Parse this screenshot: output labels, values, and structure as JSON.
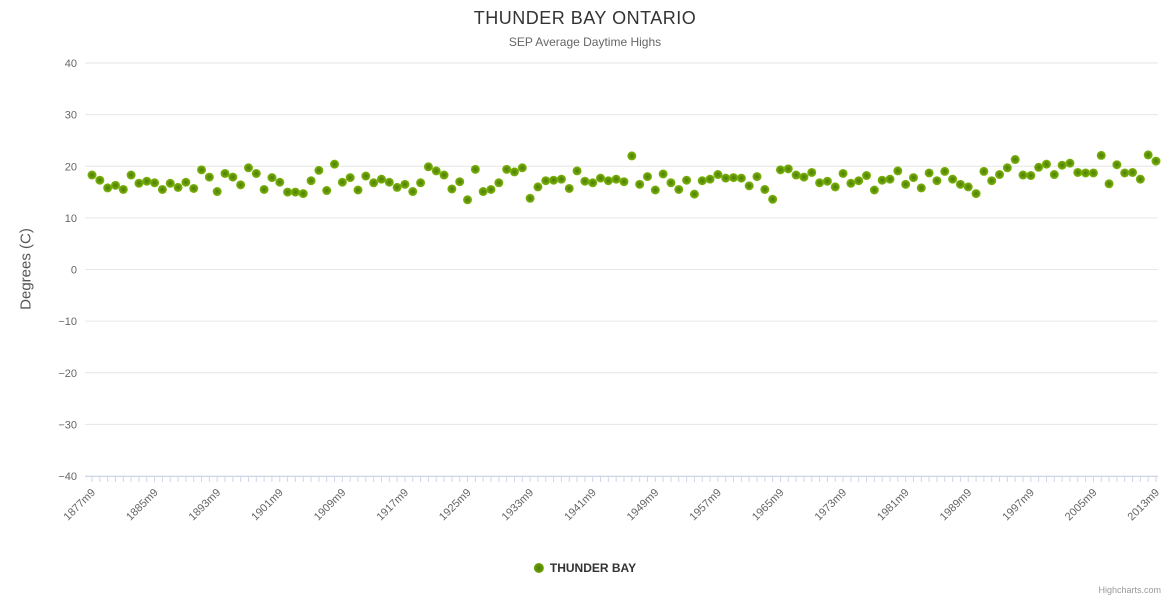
{
  "header": {
    "title": "THUNDER BAY ONTARIO",
    "subtitle": "SEP Average Daytime Highs"
  },
  "legend": {
    "label": "THUNDER BAY",
    "marker_icon": "circle-marker-icon"
  },
  "credits": {
    "label": "Highcharts.com"
  },
  "colors": {
    "point_outer": "#80b60d",
    "point_mid": "#5f9407",
    "point_core": "#4e7d05",
    "gridline": "#e6e6e6",
    "axis_line": "#ccd6eb",
    "tick": "#ccd6eb",
    "axis_label": "#666666",
    "title_text": "#333333",
    "subtitle_text": "#666666",
    "background": "#ffffff"
  },
  "chart_data": {
    "type": "scatter",
    "title": "THUNDER BAY ONTARIO",
    "subtitle": "SEP Average Daytime Highs",
    "xlabel": "",
    "ylabel": "Degrees (C)",
    "ylim": [
      -40,
      40
    ],
    "y_tick_step": 10,
    "y_tick_labels": [
      "40",
      "30",
      "20",
      "10",
      "0",
      "−10",
      "−20",
      "−30",
      "−40"
    ],
    "grid": true,
    "legend_position": "bottom-center",
    "x_start_year": 1877,
    "x_end_year": 2013,
    "x_label_every": 8,
    "x_label_suffix": "m9",
    "x_tick_labels": [
      "1877m9",
      "1885m9",
      "1893m9",
      "1901m9",
      "1909m9",
      "1917m9",
      "1925m9",
      "1933m9",
      "1941m9",
      "1949m9",
      "1957m9",
      "1965m9",
      "1973m9",
      "1981m9",
      "1989m9",
      "1997m9",
      "2005m9",
      "2013m9"
    ],
    "series": [
      {
        "name": "THUNDER BAY",
        "start_year": 1877,
        "values": [
          18.3,
          17.3,
          15.8,
          16.3,
          15.5,
          18.3,
          16.7,
          17.1,
          16.8,
          15.5,
          16.7,
          15.9,
          16.9,
          15.7,
          19.3,
          17.9,
          15.1,
          18.6,
          17.9,
          16.4,
          19.7,
          18.6,
          15.5,
          17.8,
          16.9,
          15.0,
          15.0,
          14.7,
          17.2,
          19.2,
          15.3,
          20.4,
          16.9,
          17.8,
          15.4,
          18.1,
          16.8,
          17.5,
          16.9,
          15.9,
          16.5,
          15.1,
          16.8,
          19.9,
          19.1,
          18.3,
          15.6,
          17.0,
          13.5,
          19.4,
          15.1,
          15.5,
          16.8,
          19.4,
          18.9,
          19.7,
          13.8,
          16.0,
          17.2,
          17.3,
          17.5,
          15.7,
          19.1,
          17.1,
          16.8,
          17.7,
          17.2,
          17.5,
          17.0,
          22.0,
          16.5,
          18.0,
          15.4,
          18.5,
          16.8,
          15.5,
          17.3,
          14.6,
          17.2,
          17.5,
          18.4,
          17.7,
          17.8,
          17.7,
          16.2,
          18.0,
          15.5,
          13.6,
          19.3,
          19.5,
          18.3,
          17.9,
          18.8,
          16.8,
          17.1,
          16.0,
          18.6,
          16.7,
          17.2,
          18.2,
          15.4,
          17.3,
          17.5,
          19.1,
          16.5,
          17.8,
          15.8,
          18.7,
          17.2,
          19.0,
          17.5,
          16.5,
          16.0,
          14.7,
          19.0,
          17.2,
          18.4,
          19.7,
          21.3,
          18.3,
          18.2,
          19.8,
          20.4,
          18.4,
          20.2,
          20.6,
          18.8,
          18.7,
          18.7,
          22.1,
          16.6,
          20.3,
          18.7,
          18.8,
          17.5,
          22.2,
          21.0
        ]
      }
    ]
  }
}
